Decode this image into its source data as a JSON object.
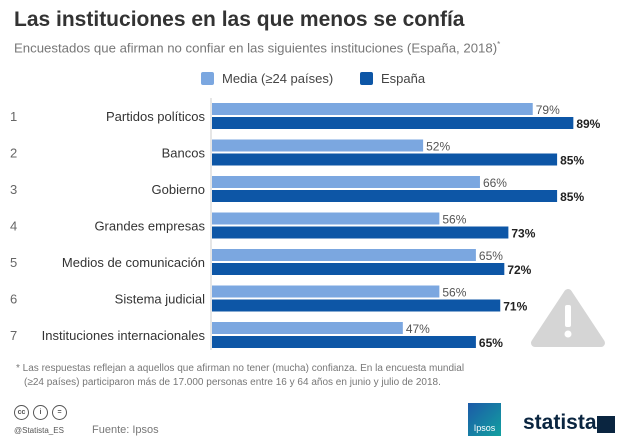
{
  "chart_data": {
    "type": "bar",
    "orientation": "horizontal",
    "title": "Las instituciones en las que menos se confía",
    "subtitle": "Encuestados que afirman no confiar en las siguientes instituciones (España, 2018)",
    "subtitle_mark": "*",
    "categories": [
      "Partidos políticos",
      "Bancos",
      "Gobierno",
      "Grandes empresas",
      "Medios de comunicación",
      "Sistema judicial",
      "Instituciones internacionales"
    ],
    "ranks": [
      "1",
      "2",
      "3",
      "4",
      "5",
      "6",
      "7"
    ],
    "series": [
      {
        "name": "Media (≥24 países)",
        "values": [
          79,
          52,
          66,
          56,
          65,
          56,
          47
        ],
        "color": "#7ba7e0"
      },
      {
        "name": "España",
        "values": [
          89,
          85,
          85,
          73,
          72,
          71,
          65
        ],
        "color": "#0d56a6"
      }
    ],
    "unit": "%",
    "xlim": [
      0,
      100
    ],
    "grid": false,
    "legend_position": "top"
  },
  "note": [
    "* Las respuestas reflejan a aquellos que afirman no tener (mucha) confianza. En la encuesta mundial",
    "(≥24 países) participaron más de 17.000 personas entre 16 y 64 años en junio y julio de 2018."
  ],
  "footer": {
    "handle": "@Statista_ES",
    "source": "Fuente: Ipsos",
    "ipsos_logo": "Ipsos",
    "statista_logo": "statista"
  },
  "icons": {
    "warning": "warning-triangle-icon",
    "license": "cc-by-nd-icons"
  }
}
